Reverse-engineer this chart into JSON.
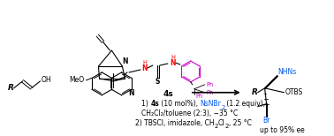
{
  "background_color": "#ffffff",
  "fig_width": 3.78,
  "fig_height": 1.54,
  "dpi": 100,
  "black": "#000000",
  "red": "#ff0000",
  "blue": "#0055ee",
  "purple": "#cc00cc",
  "fs_base": 6.5,
  "fs_small": 5.5,
  "fs_tiny": 4.8,
  "catalyst_label": "4s",
  "ee_text": "up to 95% ee",
  "line1a": "1) ",
  "line1b": "4s",
  "line1c": " (10 mol%), ",
  "line1d": "NsNBr",
  "line1e": "2",
  "line1f": " (1.2 equiv),",
  "line2": "CH₂Cl₂/toluene (2:3), −35 °C",
  "line3a": "2) TBSCl, imidazole, CH",
  "line3b": "2",
  "line3c": "Cl",
  "line3d": "2",
  "line3e": ", 25 °C"
}
